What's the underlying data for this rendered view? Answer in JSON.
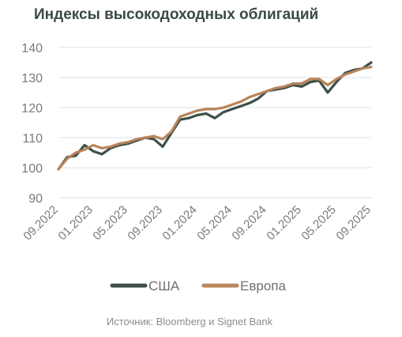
{
  "chart_data": {
    "type": "line",
    "title": "Индексы высокодоходных облигаций",
    "x": [
      "09.2022",
      "10.2022",
      "11.2022",
      "12.2022",
      "01.2023",
      "02.2023",
      "03.2023",
      "04.2023",
      "05.2023",
      "06.2023",
      "07.2023",
      "08.2023",
      "09.2023",
      "10.2023",
      "11.2023",
      "12.2023",
      "01.2024",
      "02.2024",
      "03.2024",
      "04.2024",
      "05.2024",
      "06.2024",
      "07.2024",
      "08.2024",
      "09.2024",
      "10.2024",
      "11.2024",
      "12.2024",
      "01.2025",
      "02.2025",
      "03.2025",
      "04.2025",
      "05.2025",
      "06.2025",
      "07.2025",
      "08.2025",
      "09.2025"
    ],
    "x_ticks": [
      "09.2022",
      "01.2023",
      "05.2023",
      "09.2023",
      "01.2024",
      "05.2024",
      "09.2024",
      "01.2025",
      "05.2025",
      "09.2025"
    ],
    "series": [
      {
        "name": "США",
        "color": "#3d4f49",
        "values": [
          99.5,
          103.5,
          104.0,
          107.5,
          105.5,
          104.5,
          106.5,
          107.5,
          108.0,
          109.0,
          110.0,
          109.5,
          107.0,
          111.5,
          116.0,
          116.5,
          117.5,
          118.0,
          116.5,
          118.5,
          119.5,
          120.5,
          121.5,
          123.0,
          125.5,
          126.0,
          126.5,
          127.5,
          127.0,
          128.5,
          129.0,
          125.0,
          128.5,
          131.5,
          132.5,
          133.0,
          135.0
        ]
      },
      {
        "name": "Европа",
        "color": "#b8845a",
        "values": [
          99.5,
          103.0,
          105.0,
          106.0,
          107.5,
          106.5,
          107.0,
          108.0,
          108.5,
          109.5,
          110.0,
          110.5,
          109.5,
          112.0,
          117.0,
          118.0,
          119.0,
          119.5,
          119.5,
          120.0,
          121.0,
          122.0,
          123.5,
          124.5,
          125.5,
          126.5,
          127.0,
          128.0,
          128.0,
          129.5,
          129.5,
          127.5,
          129.5,
          131.0,
          132.0,
          133.0,
          133.5
        ]
      }
    ],
    "ylim": [
      90,
      140
    ],
    "y_ticks": [
      90,
      100,
      110,
      120,
      130,
      140
    ],
    "grid": true,
    "legend": "bottom",
    "source": "Источник: Bloomberg и Signet Bank"
  }
}
